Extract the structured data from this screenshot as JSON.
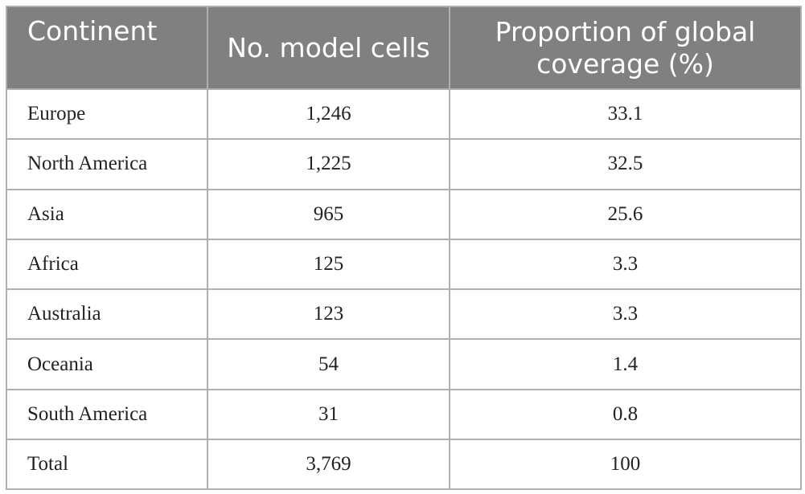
{
  "table": {
    "header": [
      "Continent",
      "No. model cells",
      "Proportion of global coverage (%)"
    ],
    "rows": [
      [
        "Europe",
        "1,246",
        "33.1"
      ],
      [
        "North America",
        "1,225",
        "32.5"
      ],
      [
        "Asia",
        "965",
        "25.6"
      ],
      [
        "Africa",
        "125",
        "3.3"
      ],
      [
        "Australia",
        "123",
        "3.3"
      ],
      [
        "Oceania",
        "54",
        "1.4"
      ],
      [
        "South America",
        "31",
        "0.8"
      ],
      [
        "Total",
        "3,769",
        "100"
      ]
    ]
  }
}
